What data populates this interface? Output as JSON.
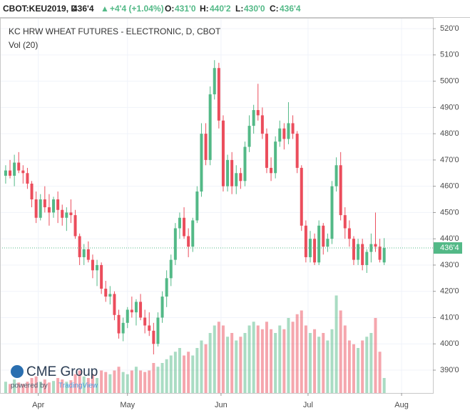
{
  "header": {
    "symbol": "CBOT:KEU2019, D",
    "last": "436'4",
    "arrow": "▲",
    "change": "+4'4 (+1.04%)",
    "o_label": "O:",
    "o": "431'0",
    "h_label": "H:",
    "h": "440'2",
    "l_label": "L:",
    "l": "430'0",
    "c_label": "C:",
    "c": "436'4"
  },
  "logo": {
    "name": "CME Group",
    "powered": "powered by",
    "brand": "TradingView"
  },
  "chart_data": {
    "type": "candlestick",
    "title": "KC HRW WHEAT FUTURES - ELECTRONIC, D, CBOT",
    "subtitle": "Vol (20)",
    "up_color": "#53b987",
    "down_color": "#eb4d5c",
    "x": [
      0,
      1,
      2,
      3,
      4,
      5,
      6,
      7,
      8,
      9,
      10,
      11,
      12,
      13,
      14,
      15,
      16,
      17,
      18,
      19,
      20,
      21,
      22,
      23,
      24,
      25,
      26,
      27,
      28,
      29,
      30,
      31,
      32,
      33,
      34,
      35,
      36,
      37,
      38,
      39,
      40,
      41,
      42,
      43,
      44,
      45,
      46,
      47,
      48,
      49,
      50,
      51,
      52,
      53,
      54,
      55,
      56,
      57,
      58,
      59,
      60,
      61,
      62,
      63,
      64,
      65,
      66,
      67,
      68,
      69,
      70,
      71,
      72,
      73,
      74,
      75,
      76,
      77,
      78,
      79,
      80,
      81,
      82,
      83,
      84,
      85,
      86,
      87
    ],
    "open": [
      464,
      466,
      464,
      469,
      466,
      465,
      461,
      455,
      448,
      455,
      452,
      450,
      455,
      451,
      448,
      450,
      449,
      441,
      433,
      436,
      432,
      428,
      430,
      421,
      418,
      419,
      411,
      404,
      408,
      413,
      412,
      416,
      410,
      407,
      405,
      400,
      410,
      418,
      425,
      432,
      444,
      448,
      441,
      437,
      447,
      458,
      480,
      470,
      495,
      505,
      485,
      460,
      470,
      460,
      465,
      462,
      475,
      483,
      489,
      487,
      480,
      467,
      465,
      477,
      482,
      478,
      484,
      480,
      467,
      445,
      433,
      440,
      431,
      445,
      437,
      440,
      460,
      468,
      449,
      444,
      440,
      432,
      438,
      430,
      435,
      438,
      437,
      431
    ],
    "high": [
      468,
      470,
      472,
      473,
      468,
      467,
      462,
      458,
      457,
      460,
      457,
      456,
      458,
      453,
      452,
      455,
      451,
      442,
      438,
      439,
      434,
      432,
      431,
      424,
      422,
      420,
      413,
      410,
      414,
      418,
      417,
      419,
      413,
      412,
      408,
      412,
      420,
      428,
      434,
      446,
      450,
      452,
      444,
      448,
      460,
      484,
      484,
      498,
      508,
      507,
      487,
      472,
      473,
      468,
      467,
      477,
      487,
      491,
      499,
      490,
      482,
      471,
      479,
      485,
      484,
      492,
      487,
      481,
      468,
      447,
      443,
      442,
      447,
      446,
      442,
      462,
      471,
      473,
      452,
      447,
      441,
      440,
      440,
      436,
      442,
      450,
      440,
      440.25
    ],
    "low": [
      461,
      463,
      460,
      465,
      461,
      459,
      452,
      446,
      447,
      450,
      445,
      448,
      446,
      445,
      443,
      446,
      440,
      430,
      430,
      431,
      425,
      422,
      419,
      416,
      415,
      409,
      402,
      401,
      406,
      410,
      407,
      409,
      404,
      403,
      396,
      399,
      408,
      414,
      422,
      430,
      440,
      440,
      433,
      435,
      446,
      456,
      468,
      468,
      493,
      482,
      458,
      458,
      457,
      457,
      459,
      460,
      473,
      480,
      485,
      478,
      465,
      462,
      463,
      475,
      474,
      476,
      478,
      465,
      443,
      431,
      431,
      430,
      430,
      434,
      435,
      438,
      458,
      447,
      440,
      437,
      430,
      430,
      428,
      427,
      431,
      435,
      431,
      430
    ],
    "close": [
      466,
      464,
      469,
      466,
      465,
      461,
      455,
      448,
      455,
      452,
      450,
      455,
      451,
      448,
      450,
      449,
      441,
      433,
      436,
      432,
      428,
      430,
      421,
      418,
      419,
      411,
      404,
      408,
      413,
      412,
      416,
      410,
      407,
      405,
      400,
      410,
      418,
      425,
      432,
      444,
      448,
      441,
      437,
      447,
      458,
      480,
      470,
      495,
      505,
      485,
      460,
      470,
      460,
      465,
      462,
      475,
      483,
      489,
      487,
      480,
      467,
      465,
      477,
      482,
      478,
      484,
      480,
      467,
      445,
      433,
      440,
      431,
      445,
      437,
      440,
      460,
      468,
      449,
      444,
      440,
      432,
      438,
      430,
      435,
      438,
      437,
      432,
      436.5
    ],
    "volume": [
      15,
      12,
      18,
      14,
      12,
      15,
      20,
      22,
      15,
      18,
      14,
      16,
      20,
      18,
      15,
      17,
      25,
      30,
      22,
      20,
      25,
      20,
      30,
      28,
      25,
      30,
      35,
      28,
      25,
      30,
      35,
      30,
      28,
      30,
      40,
      35,
      40,
      45,
      50,
      55,
      60,
      50,
      55,
      50,
      60,
      70,
      65,
      80,
      90,
      95,
      90,
      75,
      80,
      70,
      75,
      80,
      90,
      95,
      90,
      85,
      95,
      85,
      80,
      90,
      85,
      100,
      95,
      105,
      110,
      90,
      80,
      85,
      75,
      80,
      70,
      85,
      130,
      110,
      90,
      70,
      65,
      60,
      70,
      75,
      80,
      100,
      55,
      20
    ],
    "vol_lim": [
      0,
      500
    ],
    "xlim": [
      -1.3,
      98.2
    ],
    "xticks": [
      {
        "value": 7.5,
        "label": "Apr"
      },
      {
        "value": 28,
        "label": "May"
      },
      {
        "value": 49.5,
        "label": "Jun"
      },
      {
        "value": 69.5,
        "label": "Jul"
      },
      {
        "value": 91,
        "label": "Aug"
      }
    ],
    "ylim": [
      381.3,
      524.1
    ],
    "yticks": [
      {
        "value": 390,
        "label": "390'0"
      },
      {
        "value": 400,
        "label": "400'0"
      },
      {
        "value": 410,
        "label": "410'0"
      },
      {
        "value": 420,
        "label": "420'0"
      },
      {
        "value": 430,
        "label": "430'0"
      },
      {
        "value": 440,
        "label": "440'0"
      },
      {
        "value": 450,
        "label": "450'0"
      },
      {
        "value": 460,
        "label": "460'0"
      },
      {
        "value": 470,
        "label": "470'0"
      },
      {
        "value": 480,
        "label": "480'0"
      },
      {
        "value": 490,
        "label": "490'0"
      },
      {
        "value": 500,
        "label": "500'0"
      },
      {
        "value": 510,
        "label": "510'0"
      },
      {
        "value": 520,
        "label": "520'0"
      }
    ],
    "last_price": {
      "value": 436.5,
      "label": "436'4"
    },
    "grid": true
  }
}
